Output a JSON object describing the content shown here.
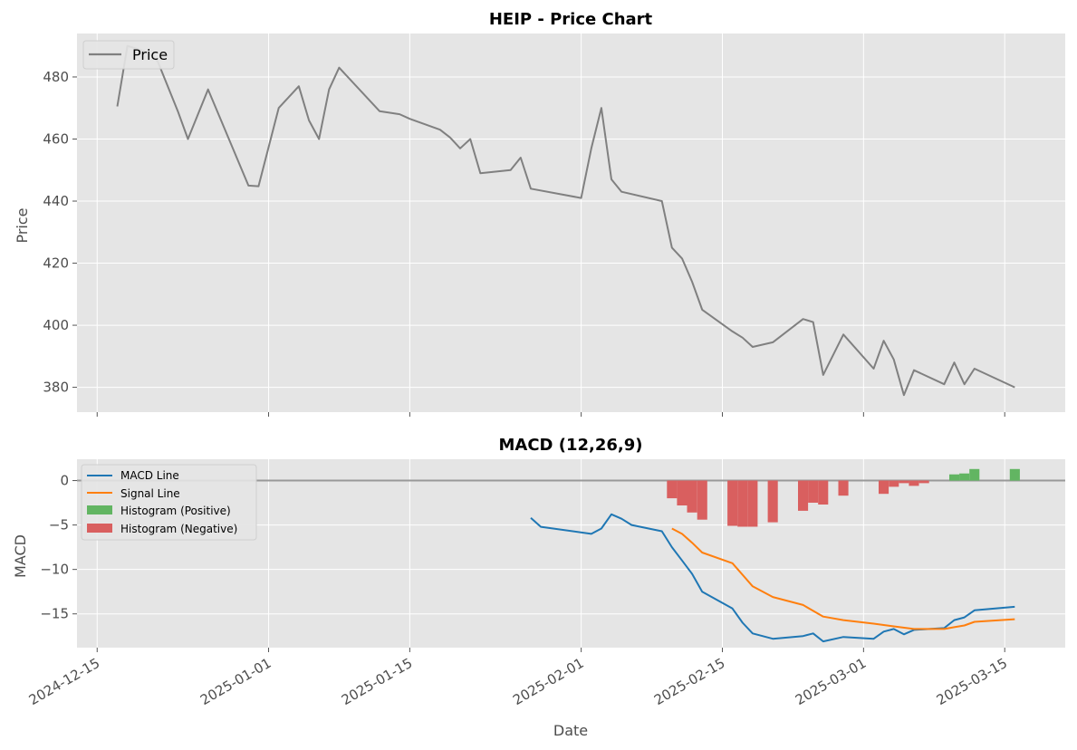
{
  "chart_data": [
    {
      "type": "line",
      "title": "HEIP - Price Chart",
      "xlabel": "",
      "ylabel": "Price",
      "ylim": [
        372,
        494
      ],
      "yticks": [
        380,
        400,
        420,
        440,
        460,
        480
      ],
      "grid": true,
      "legend_position": "top-left",
      "series": [
        {
          "name": "Price",
          "color": "#808080",
          "x": [
            "2024-12-17",
            "2024-12-18",
            "2024-12-20",
            "2024-12-21",
            "2024-12-23",
            "2024-12-24",
            "2024-12-26",
            "2024-12-30",
            "2024-12-31",
            "2025-01-02",
            "2025-01-04",
            "2025-01-05",
            "2025-01-06",
            "2025-01-07",
            "2025-01-08",
            "2025-01-12",
            "2025-01-14",
            "2025-01-15",
            "2025-01-18",
            "2025-01-19",
            "2025-01-20",
            "2025-01-21",
            "2025-01-22",
            "2025-01-25",
            "2025-01-26",
            "2025-01-27",
            "2025-02-01",
            "2025-02-02",
            "2025-02-03",
            "2025-02-04",
            "2025-02-05",
            "2025-02-09",
            "2025-02-10",
            "2025-02-11",
            "2025-02-12",
            "2025-02-13",
            "2025-02-16",
            "2025-02-17",
            "2025-02-18",
            "2025-02-20",
            "2025-02-23",
            "2025-02-24",
            "2025-02-25",
            "2025-02-27",
            "2025-03-02",
            "2025-03-03",
            "2025-03-04",
            "2025-03-05",
            "2025-03-06",
            "2025-03-09",
            "2025-03-10",
            "2025-03-11",
            "2025-03-12",
            "2025-03-16"
          ],
          "y": [
            470.5,
            490,
            488,
            485,
            469,
            460,
            476,
            445,
            444.8,
            470,
            477,
            466,
            460,
            476,
            483,
            469,
            468,
            466.5,
            463,
            460.5,
            457,
            460,
            449,
            450,
            454,
            444,
            441,
            457,
            470,
            447,
            443,
            440,
            425,
            421.5,
            414,
            405,
            398,
            396,
            393,
            394.5,
            402,
            401,
            384,
            397,
            386,
            395,
            389,
            377.5,
            385.5,
            381,
            388,
            381,
            386,
            380
          ]
        }
      ]
    },
    {
      "type": "line",
      "title": "MACD (12,26,9)",
      "xlabel": "Date",
      "ylabel": "MACD",
      "ylim": [
        -18.8,
        2.4
      ],
      "yticks": [
        -15,
        -10,
        -5,
        0
      ],
      "xticks": [
        "2024-12-15",
        "2025-01-01",
        "2025-01-15",
        "2025-02-01",
        "2025-02-15",
        "2025-03-01",
        "2025-03-15"
      ],
      "xlim": [
        "2024-12-13",
        "2025-03-21"
      ],
      "grid": true,
      "legend_position": "top-left",
      "series": [
        {
          "name": "MACD Line",
          "color": "#1f77b4",
          "x": [
            "2025-01-27",
            "2025-01-28",
            "2025-02-02",
            "2025-02-03",
            "2025-02-04",
            "2025-02-05",
            "2025-02-06",
            "2025-02-09",
            "2025-02-10",
            "2025-02-11",
            "2025-02-12",
            "2025-02-13",
            "2025-02-16",
            "2025-02-17",
            "2025-02-18",
            "2025-02-20",
            "2025-02-23",
            "2025-02-24",
            "2025-02-25",
            "2025-02-27",
            "2025-03-02",
            "2025-03-03",
            "2025-03-04",
            "2025-03-05",
            "2025-03-06",
            "2025-03-09",
            "2025-03-10",
            "2025-03-11",
            "2025-03-12",
            "2025-03-16"
          ],
          "y": [
            -4.2,
            -5.2,
            -6.0,
            -5.4,
            -3.8,
            -4.3,
            -5.0,
            -5.7,
            -7.5,
            -9.0,
            -10.5,
            -12.5,
            -14.4,
            -16.0,
            -17.2,
            -17.8,
            -17.5,
            -17.2,
            -18.1,
            -17.6,
            -17.8,
            -17.0,
            -16.7,
            -17.3,
            -16.8,
            -16.6,
            -15.7,
            -15.4,
            -14.6,
            -14.2
          ]
        },
        {
          "name": "Signal Line",
          "color": "#ff7f0e",
          "x": [
            "2025-02-10",
            "2025-02-11",
            "2025-02-12",
            "2025-02-13",
            "2025-02-16",
            "2025-02-18",
            "2025-02-20",
            "2025-02-23",
            "2025-02-25",
            "2025-02-27",
            "2025-03-02",
            "2025-03-04",
            "2025-03-06",
            "2025-03-09",
            "2025-03-10",
            "2025-03-11",
            "2025-03-12",
            "2025-03-16"
          ],
          "y": [
            -5.4,
            -6.0,
            -7.0,
            -8.1,
            -9.3,
            -11.9,
            -13.1,
            -14.0,
            -15.3,
            -15.7,
            -16.1,
            -16.4,
            -16.7,
            -16.7,
            -16.5,
            -16.3,
            -15.9,
            -15.6
          ]
        }
      ],
      "histogram": {
        "positive_name": "Histogram (Positive)",
        "positive_color": "#62b562",
        "negative_name": "Histogram (Negative)",
        "negative_color": "#d95f5f",
        "x": [
          "2025-02-10",
          "2025-02-11",
          "2025-02-12",
          "2025-02-13",
          "2025-02-16",
          "2025-02-17",
          "2025-02-18",
          "2025-02-20",
          "2025-02-23",
          "2025-02-24",
          "2025-02-25",
          "2025-02-27",
          "2025-03-03",
          "2025-03-04",
          "2025-03-05",
          "2025-03-06",
          "2025-03-07",
          "2025-03-10",
          "2025-03-11",
          "2025-03-12",
          "2025-03-16"
        ],
        "values": [
          -2.0,
          -2.8,
          -3.6,
          -4.4,
          -5.1,
          -5.2,
          -5.2,
          -4.7,
          -3.4,
          -2.5,
          -2.7,
          -1.7,
          -1.5,
          -0.7,
          -0.3,
          -0.6,
          -0.3,
          0.7,
          0.8,
          1.3,
          1.3
        ]
      }
    }
  ]
}
